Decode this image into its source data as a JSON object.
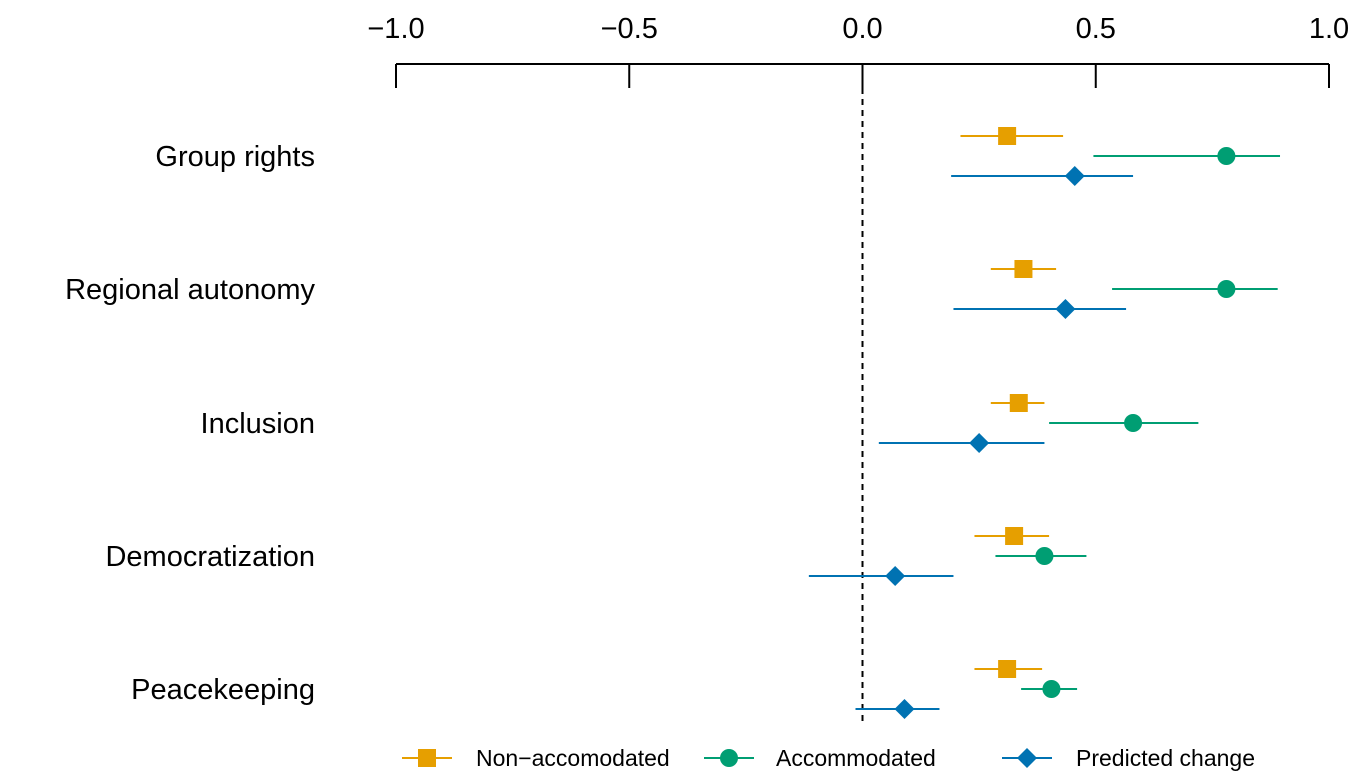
{
  "chart_data": {
    "type": "dot-interval",
    "title": "",
    "xlabel": "",
    "ylabel": "",
    "xlim": [
      -1.0,
      1.0
    ],
    "x_ticks": [
      "−1.0",
      "−0.5",
      "0.0",
      "0.5",
      "1.0"
    ],
    "x_tick_values": [
      -1.0,
      -0.5,
      0.0,
      0.5,
      1.0
    ],
    "x_axis_position": "top",
    "reference_line": 0.0,
    "grid": false,
    "legend_position": "bottom",
    "categories": [
      "Group rights",
      "Regional autonomy",
      "Inclusion",
      "Democratization",
      "Peacekeeping"
    ],
    "series": [
      {
        "name": "Non−accomodated",
        "color": "#E69F00",
        "marker": "square",
        "points": [
          {
            "estimate": 0.31,
            "low": 0.21,
            "high": 0.43
          },
          {
            "estimate": 0.345,
            "low": 0.275,
            "high": 0.415
          },
          {
            "estimate": 0.335,
            "low": 0.275,
            "high": 0.39
          },
          {
            "estimate": 0.325,
            "low": 0.24,
            "high": 0.4
          },
          {
            "estimate": 0.31,
            "low": 0.24,
            "high": 0.385
          }
        ]
      },
      {
        "name": "Accommodated",
        "color": "#009E73",
        "marker": "circle",
        "points": [
          {
            "estimate": 0.78,
            "low": 0.495,
            "high": 0.895
          },
          {
            "estimate": 0.78,
            "low": 0.535,
            "high": 0.89
          },
          {
            "estimate": 0.58,
            "low": 0.4,
            "high": 0.72
          },
          {
            "estimate": 0.39,
            "low": 0.285,
            "high": 0.48
          },
          {
            "estimate": 0.405,
            "low": 0.34,
            "high": 0.46
          }
        ]
      },
      {
        "name": "Predicted change",
        "color": "#0072B2",
        "marker": "diamond",
        "points": [
          {
            "estimate": 0.455,
            "low": 0.19,
            "high": 0.58
          },
          {
            "estimate": 0.435,
            "low": 0.195,
            "high": 0.565
          },
          {
            "estimate": 0.25,
            "low": 0.035,
            "high": 0.39
          },
          {
            "estimate": 0.07,
            "low": -0.115,
            "high": 0.195
          },
          {
            "estimate": 0.09,
            "low": -0.015,
            "high": 0.165
          }
        ]
      }
    ]
  }
}
